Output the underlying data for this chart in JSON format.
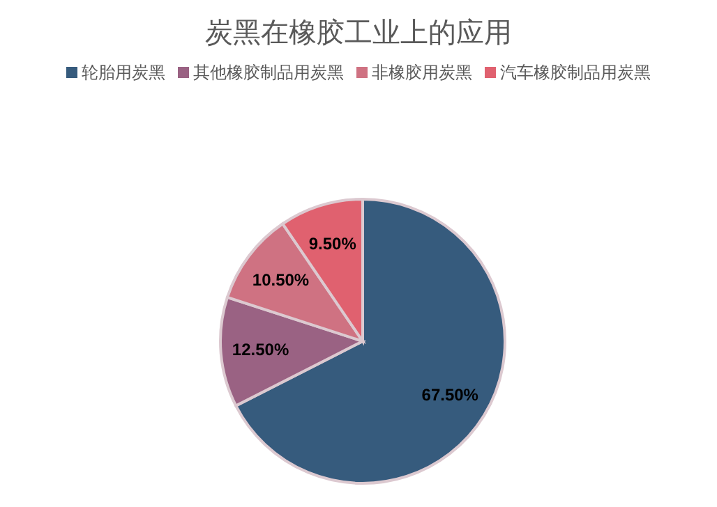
{
  "chart_data": {
    "type": "pie",
    "title": "炭黑在橡胶工业上的应用",
    "categories": [
      "轮胎用炭黑",
      "其他橡胶制品用炭黑",
      "非橡胶用炭黑",
      "汽车橡胶制品用炭黑"
    ],
    "values": [
      67.5,
      12.5,
      10.5,
      9.5
    ],
    "colors": [
      "#365b7d",
      "#9a6283",
      "#cf7282",
      "#e0616f"
    ],
    "value_labels": [
      "67.50%",
      "12.50%",
      "10.50%",
      "9.50%"
    ],
    "legend": "top"
  }
}
